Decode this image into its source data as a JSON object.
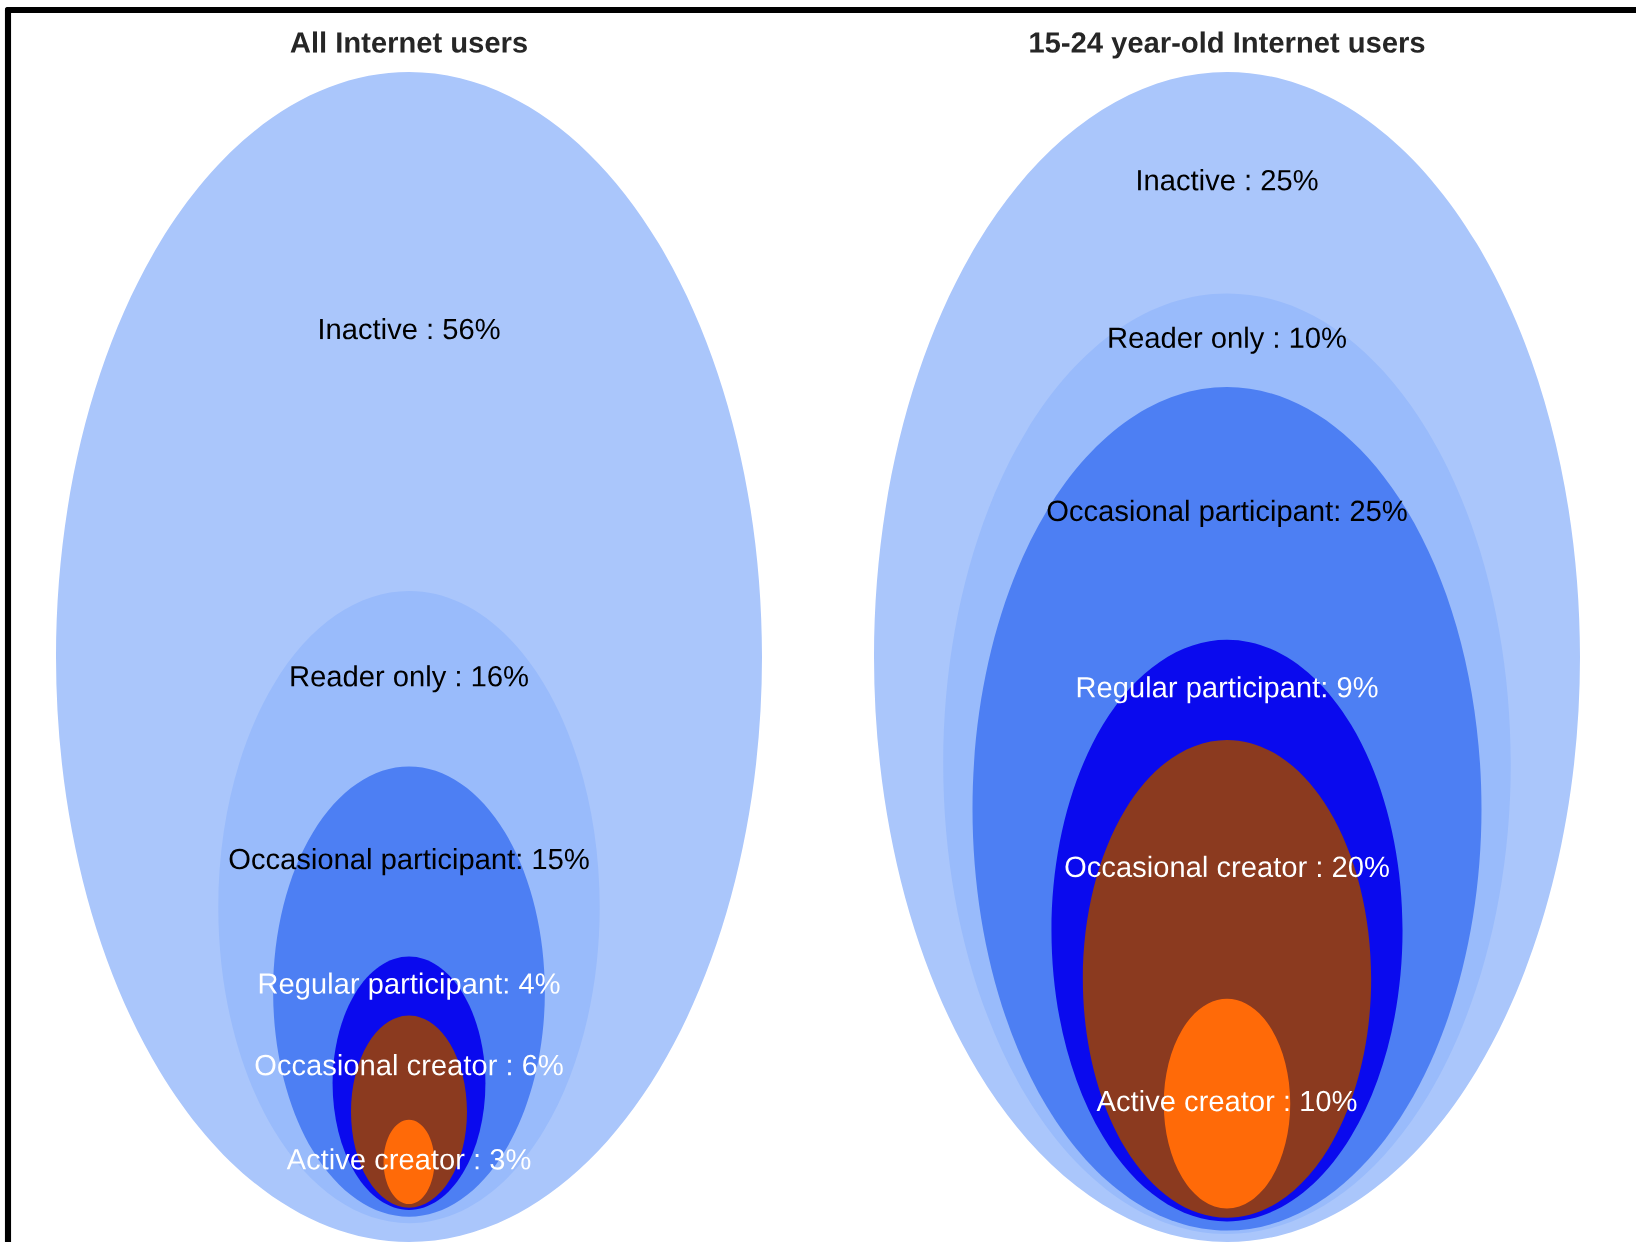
{
  "chart_data": [
    {
      "type": "other",
      "title": "All Internet users",
      "values": [
        56,
        16,
        15,
        4,
        6,
        3
      ],
      "value_labels": [
        "Inactive : 56%",
        "Reader only : 16%",
        "Occasional participant: 15%",
        "Regular participant: 4%",
        "Occasional creator : 6%",
        "Active creator : 3%"
      ],
      "colors": [
        "#aac6fb",
        "#99bbfb",
        "#4d7ff3",
        "#0a0aee",
        "#8b3a1f",
        "#ff6a08"
      ]
    },
    {
      "type": "other",
      "title": "15-24 year-old Internet users",
      "values": [
        25,
        10,
        25,
        9,
        20,
        10
      ],
      "value_labels": [
        "Inactive : 25%",
        "Reader only : 10%",
        "Occasional participant: 25%",
        "Regular participant: 9%",
        "Occasional creator : 20%",
        "Active creator : 10%"
      ],
      "colors": [
        "#aac6fb",
        "#99bbfb",
        "#4d7ff3",
        "#0a0aee",
        "#8b3a1f",
        "#ff6a08"
      ]
    }
  ]
}
